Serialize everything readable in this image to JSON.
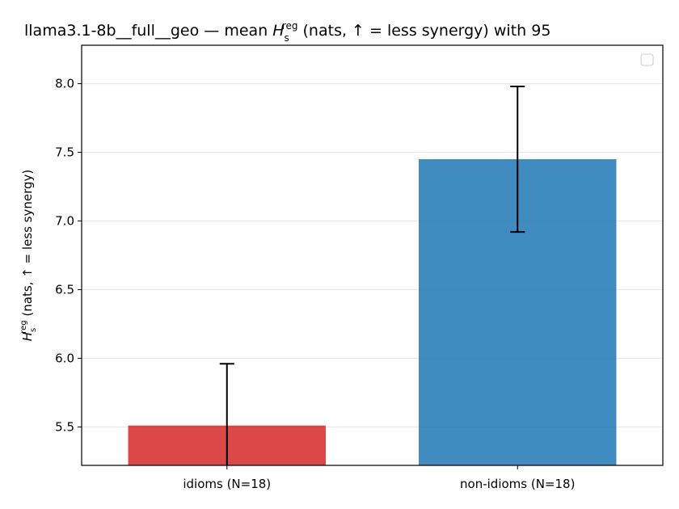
{
  "chart_data": {
    "type": "bar",
    "title_prefix": "llama3.1-8b__full__geo — mean ",
    "title_suffix": " (nats, ↑ = less synergy) with 95",
    "symbol": {
      "base": "H",
      "sub": "s",
      "sup": "reg"
    },
    "ylabel_suffix": " (nats, ↑ = less synergy)",
    "categories": [
      "idioms (N=18)",
      "non-idioms (N=18)"
    ],
    "values": [
      5.51,
      7.45
    ],
    "ci_low": [
      5.2,
      6.92
    ],
    "ci_high": [
      5.96,
      7.98
    ],
    "colors": [
      "#d62728",
      "#1f77b4"
    ],
    "ylim": [
      5.22,
      8.28
    ],
    "yticks": [
      "5.5",
      "6.0",
      "6.5",
      "7.0",
      "7.5",
      "8.0"
    ],
    "grid": true,
    "legend": {
      "position": "top-right",
      "entries": []
    }
  }
}
